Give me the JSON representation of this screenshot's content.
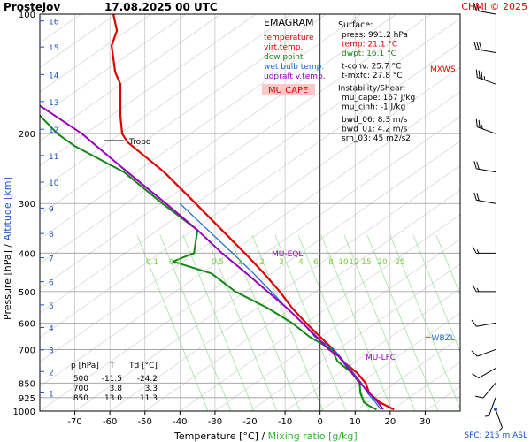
{
  "header": {
    "station": "Prostejov",
    "datetime": "17.08.2025 00 UTC",
    "credit": "CHMI © 2025"
  },
  "legend": {
    "title": "EMAGRAM",
    "items": [
      {
        "label": "temperature",
        "color": "#e00000"
      },
      {
        "label": "virt.temp.",
        "color": "#e00000"
      },
      {
        "label": "dew point",
        "color": "#118811"
      },
      {
        "label": "wet bulb temp.",
        "color": "#1a66cc"
      },
      {
        "label": "udpraft v.temp.",
        "color": "#9900bb"
      }
    ],
    "badge": "MU CAPE"
  },
  "info": {
    "surface_header": "Surface:",
    "surface": [
      {
        "text": "press: 991.2 hPa",
        "color": "#000000"
      },
      {
        "text": "temp: 21.1 °C",
        "color": "#e00000"
      },
      {
        "text": "dwpt: 16.1 °C",
        "color": "#118811"
      }
    ],
    "conv": [
      "t-conv: 25.7 °C",
      "t-mxfc: 27.8 °C"
    ],
    "instability_header": "Instability/Shear:",
    "instability": [
      "mu_cape: 167 J/kg",
      "mu_cinh: -1 J/kg"
    ],
    "shear": [
      "bwd_06: 8.3 m/s",
      "bwd_01: 4.2 m/s",
      "srh_03: 45 m2/s2"
    ]
  },
  "table": {
    "headers": [
      "p [hPa]",
      "T",
      "Td [°C]"
    ],
    "rows": [
      [
        "500",
        "-11.5",
        "-24.2"
      ],
      [
        "700",
        "3.8",
        "3.3"
      ],
      [
        "850",
        "13.0",
        "11.3"
      ]
    ]
  },
  "annotations": {
    "tropo": "Tropo",
    "mu_eql": "MU-EQL",
    "mu_lfc": "MU-LFC",
    "wbzl": "WBZL",
    "mxws": "MXWS",
    "sfc": "SFC: 215 m ASL"
  },
  "chart_data": {
    "type": "line",
    "title": "EMAGRAM",
    "xlabel": "Temperature [°C]",
    "xlabel_suffix": "Mixing ratio [g/kg]",
    "ylabel": "Pressure [hPa]",
    "ylabel_suffix": "Altitude [km]",
    "xlim": [
      -80,
      40
    ],
    "ylim": [
      1000,
      100
    ],
    "y_scale": "log",
    "x_ticks": [
      -70,
      -60,
      -50,
      -40,
      -30,
      -20,
      -10,
      0,
      10,
      20,
      30
    ],
    "y_ticks": [
      100,
      200,
      300,
      400,
      500,
      600,
      700,
      850,
      925,
      1000
    ],
    "y_tick_labels": [
      "100",
      "200",
      "300",
      "400",
      "500",
      "600",
      "700",
      "850",
      "925",
      "1000"
    ],
    "altitude_km": [
      {
        "km": 1,
        "p": 900
      },
      {
        "km": 2,
        "p": 795
      },
      {
        "km": 3,
        "p": 701
      },
      {
        "km": 4,
        "p": 616
      },
      {
        "km": 5,
        "p": 540
      },
      {
        "km": 6,
        "p": 472
      },
      {
        "km": 7,
        "p": 411
      },
      {
        "km": 8,
        "p": 357
      },
      {
        "km": 9,
        "p": 308
      },
      {
        "km": 10,
        "p": 265
      },
      {
        "km": 11,
        "p": 227
      },
      {
        "km": 12,
        "p": 195
      },
      {
        "km": 13,
        "p": 166
      },
      {
        "km": 14,
        "p": 142
      },
      {
        "km": 15,
        "p": 121
      },
      {
        "km": 16,
        "p": 104
      }
    ],
    "mixing_ratio_labels": [
      "0.1",
      "0.2",
      "0.5",
      "1",
      "2",
      "3",
      "4",
      "6",
      "8",
      "10",
      "12",
      "15",
      "20",
      "25"
    ],
    "grid": true,
    "series": [
      {
        "name": "temperature",
        "color": "#e00000",
        "points": [
          [
            21.1,
            991
          ],
          [
            19,
            970
          ],
          [
            17,
            950
          ],
          [
            15.5,
            925
          ],
          [
            14,
            900
          ],
          [
            13,
            850
          ],
          [
            10.5,
            800
          ],
          [
            6.5,
            750
          ],
          [
            3.8,
            700
          ],
          [
            0,
            650
          ],
          [
            -4,
            600
          ],
          [
            -8,
            550
          ],
          [
            -11.5,
            500
          ],
          [
            -16,
            450
          ],
          [
            -21.5,
            400
          ],
          [
            -28,
            350
          ],
          [
            -35.5,
            300
          ],
          [
            -44.5,
            250
          ],
          [
            -55,
            210
          ],
          [
            -56.5,
            200
          ],
          [
            -57,
            180
          ],
          [
            -57,
            150
          ],
          [
            -58.5,
            140
          ],
          [
            -59.5,
            120
          ],
          [
            -58,
            110
          ],
          [
            -59,
            100
          ]
        ]
      },
      {
        "name": "dew point",
        "color": "#118811",
        "points": [
          [
            16.1,
            991
          ],
          [
            14,
            970
          ],
          [
            12.5,
            950
          ],
          [
            12,
            925
          ],
          [
            11.5,
            900
          ],
          [
            11.3,
            850
          ],
          [
            9,
            800
          ],
          [
            5,
            750
          ],
          [
            3.3,
            700
          ],
          [
            -3,
            650
          ],
          [
            -8,
            600
          ],
          [
            -15,
            550
          ],
          [
            -24.2,
            500
          ],
          [
            -31,
            450
          ],
          [
            -42,
            420
          ],
          [
            -36,
            400
          ],
          [
            -35,
            350
          ],
          [
            -45,
            300
          ],
          [
            -56,
            250
          ],
          [
            -70,
            215
          ],
          [
            -75,
            200
          ],
          [
            -80,
            180
          ]
        ]
      },
      {
        "name": "wet bulb temp.",
        "color": "#1a66cc",
        "points": [
          [
            17.3,
            991
          ],
          [
            15.8,
            950
          ],
          [
            13.5,
            900
          ],
          [
            11.8,
            850
          ],
          [
            8.5,
            780
          ],
          [
            4,
            700
          ],
          [
            -1.5,
            650
          ],
          [
            -5,
            600
          ],
          [
            -9.5,
            550
          ],
          [
            -14,
            500
          ],
          [
            -19,
            450
          ],
          [
            -25,
            400
          ],
          [
            -32,
            350
          ],
          [
            -40,
            300
          ]
        ]
      },
      {
        "name": "udpraft v.temp.",
        "color": "#9900bb",
        "points": [
          [
            18,
            991
          ],
          [
            16.5,
            950
          ],
          [
            14,
            900
          ],
          [
            11.5,
            850
          ],
          [
            8,
            780
          ],
          [
            5.5,
            730
          ],
          [
            2.5,
            700
          ],
          [
            -1,
            650
          ],
          [
            -5,
            600
          ],
          [
            -9.5,
            550
          ],
          [
            -15,
            500
          ],
          [
            -21,
            450
          ],
          [
            -28,
            400
          ],
          [
            -35,
            350
          ],
          [
            -44,
            300
          ],
          [
            -55,
            250
          ],
          [
            -68,
            200
          ],
          [
            -80,
            170
          ]
        ]
      }
    ],
    "wind_barbs": [
      {
        "p": 990,
        "dir": 160,
        "spd": 5
      },
      {
        "p": 925,
        "dir": 200,
        "spd": 5
      },
      {
        "p": 850,
        "dir": 220,
        "spd": 10
      },
      {
        "p": 780,
        "dir": 240,
        "spd": 10
      },
      {
        "p": 700,
        "dir": 250,
        "spd": 10
      },
      {
        "p": 600,
        "dir": 260,
        "spd": 10
      },
      {
        "p": 500,
        "dir": 270,
        "spd": 15
      },
      {
        "p": 400,
        "dir": 270,
        "spd": 15
      },
      {
        "p": 300,
        "dir": 280,
        "spd": 20
      },
      {
        "p": 250,
        "dir": 280,
        "spd": 20
      },
      {
        "p": 200,
        "dir": 290,
        "spd": 25
      },
      {
        "p": 150,
        "dir": 290,
        "spd": 35
      },
      {
        "p": 125,
        "dir": 280,
        "spd": 30
      },
      {
        "p": 100,
        "dir": 280,
        "spd": 20
      }
    ]
  }
}
